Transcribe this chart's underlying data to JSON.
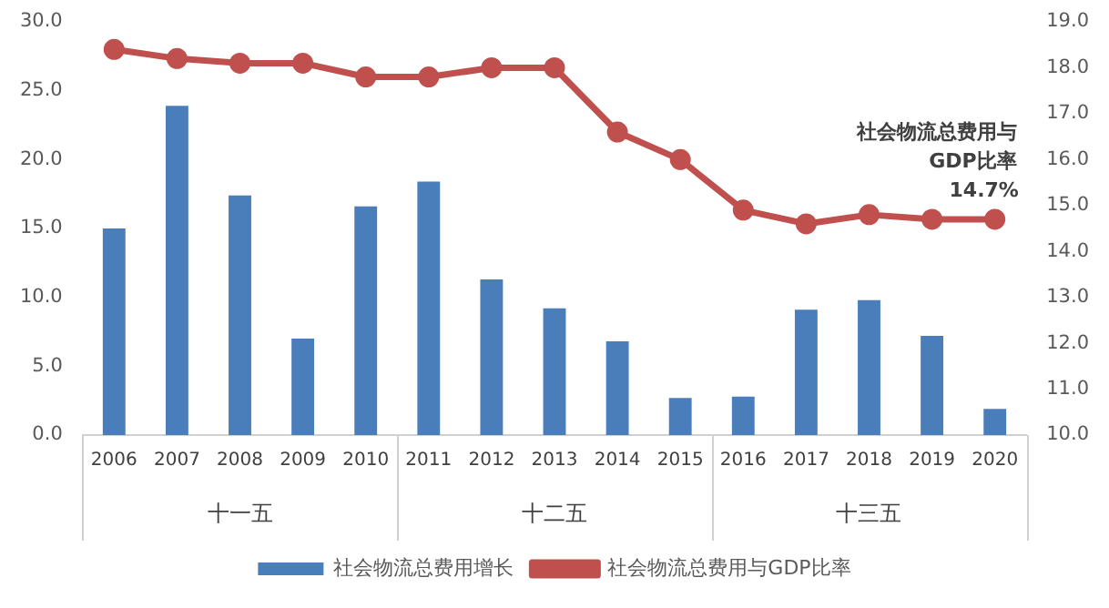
{
  "chart_data": {
    "type": "bar",
    "categories": [
      "2006",
      "2007",
      "2008",
      "2009",
      "2010",
      "2011",
      "2012",
      "2013",
      "2014",
      "2015",
      "2016",
      "2017",
      "2018",
      "2019",
      "2020"
    ],
    "series": [
      {
        "name": "社会物流总费用增长",
        "color": "#4a7ebb",
        "values": [
          15.0,
          23.9,
          17.4,
          7.0,
          16.6,
          18.4,
          11.3,
          9.2,
          6.8,
          2.7,
          2.8,
          9.1,
          9.8,
          7.2,
          1.9
        ]
      },
      {
        "name": "社会物流总费用与GDP比率",
        "type": "line",
        "axis": "y2",
        "color": "#c0504d",
        "marker": "circle",
        "values": [
          18.4,
          18.2,
          18.1,
          18.1,
          17.8,
          17.8,
          18.0,
          18.0,
          16.6,
          16.0,
          14.9,
          14.6,
          14.8,
          14.7,
          14.7
        ],
        "value_labels": [
          null,
          null,
          null,
          null,
          null,
          null,
          null,
          null,
          null,
          null,
          null,
          null,
          null,
          null,
          "14.7%"
        ]
      }
    ],
    "ylim": [
      0,
      30
    ],
    "yticks": [
      {
        "value": 0,
        "label": "0.0"
      },
      {
        "value": 5,
        "label": "5.0"
      },
      {
        "value": 10,
        "label": "10.0"
      },
      {
        "value": 15,
        "label": "15.0"
      },
      {
        "value": 20,
        "label": "20.0"
      },
      {
        "value": 25,
        "label": "25.0"
      },
      {
        "value": 30,
        "label": "30.0"
      }
    ],
    "y2lim": [
      10,
      19
    ],
    "y2ticks": [
      {
        "value": 10,
        "label": "10.0"
      },
      {
        "value": 11,
        "label": "11.0"
      },
      {
        "value": 12,
        "label": "12.0"
      },
      {
        "value": 13,
        "label": "13.0"
      },
      {
        "value": 14,
        "label": "14.0"
      },
      {
        "value": 15,
        "label": "15.0"
      },
      {
        "value": 16,
        "label": "16.0"
      },
      {
        "value": 17,
        "label": "17.0"
      },
      {
        "value": 18,
        "label": "18.0"
      },
      {
        "value": 19,
        "label": "19.0"
      }
    ],
    "annotations": [
      "十一五",
      "十二五",
      "十三五",
      {
        "text": "社会物流总费用与GDP比率",
        "x": "2020",
        "y": 14.7
      }
    ],
    "legend": "bottom",
    "grid": false
  }
}
